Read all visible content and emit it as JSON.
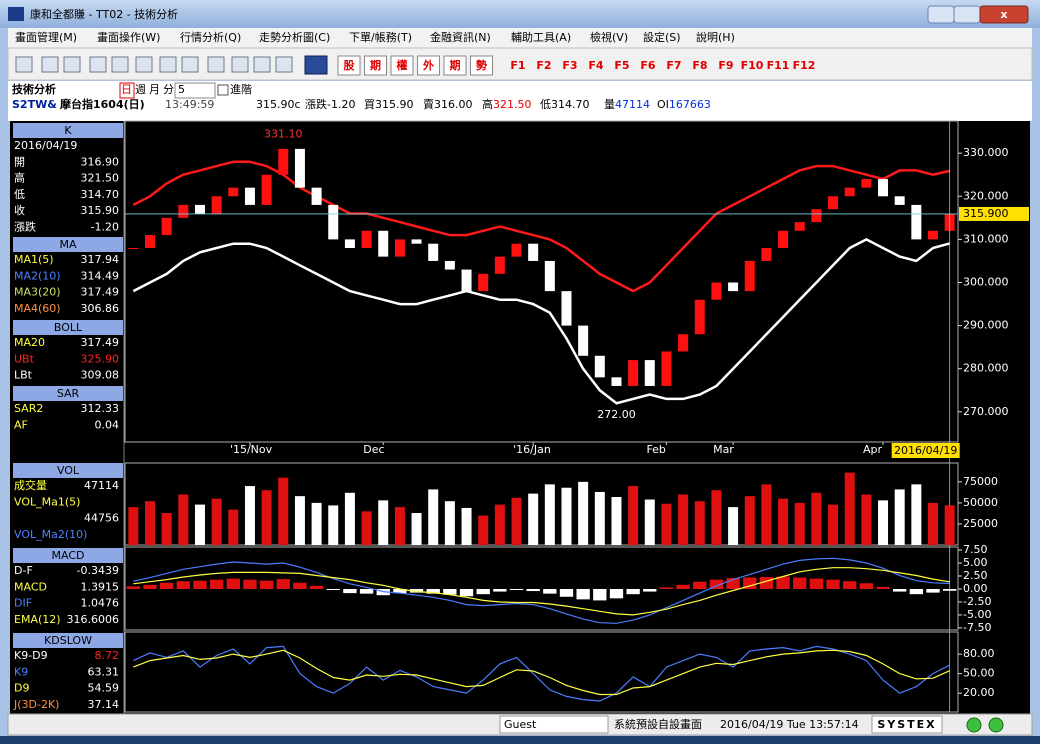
{
  "window": {
    "title": "康和全都賺 - TT02 - 技術分析"
  },
  "menu": [
    "畫面管理(M)",
    "畫面操作(W)",
    "行情分析(Q)",
    "走勢分析圖(C)",
    "下單/帳務(T)",
    "金融資訊(N)",
    "輔助工具(A)",
    "檢視(V)",
    "設定(S)",
    "說明(H)"
  ],
  "toolbar": {
    "buttons": [
      "股",
      "期",
      "權",
      "外",
      "期",
      "勢"
    ],
    "fkeys": [
      "F1",
      "F2",
      "F3",
      "F4",
      "F5",
      "F6",
      "F7",
      "F8",
      "F9",
      "F10",
      "F11",
      "F12"
    ]
  },
  "quote": {
    "title": "技術分析",
    "periods": [
      "日",
      "週",
      "月",
      "分"
    ],
    "minutes": "5",
    "advanced": "進階",
    "symbol": "S2TW&",
    "name": "摩台指1604(日)",
    "time": "13:49:59",
    "items": [
      {
        "label": "",
        "value": "315.90c"
      },
      {
        "label": "漲跌",
        "value": "-1.20"
      },
      {
        "label": "買",
        "value": "315.90"
      },
      {
        "label": "賣",
        "value": "316.00"
      },
      {
        "label": "高",
        "value": "321.50",
        "color": "#e00000"
      },
      {
        "label": "低",
        "value": "314.70"
      },
      {
        "label": "量",
        "value": "47114",
        "color": "#0030e0"
      },
      {
        "label": "OI",
        "value": "167663",
        "color": "#0030e0"
      }
    ]
  },
  "left_panel": [
    {
      "header": "K",
      "date": "2016/04/19",
      "rows": [
        {
          "label": "開",
          "value": "316.90"
        },
        {
          "label": "高",
          "value": "321.50"
        },
        {
          "label": "低",
          "value": "314.70"
        },
        {
          "label": "收",
          "value": "315.90"
        },
        {
          "label": "漲跌",
          "value": "-1.20"
        }
      ]
    },
    {
      "header": "MA",
      "rows": [
        {
          "label": "MA1(5)",
          "value": "317.94",
          "color": "#ffff40"
        },
        {
          "label": "MA2(10)",
          "value": "314.49",
          "color": "#5080ff"
        },
        {
          "label": "MA3(20)",
          "value": "317.49",
          "color": "#c8e060"
        },
        {
          "label": "MA4(60)",
          "value": "306.86",
          "color": "#ff9040"
        }
      ]
    },
    {
      "header": "BOLL",
      "rows": [
        {
          "label": "MA20",
          "value": "317.49",
          "color": "#ffff40"
        },
        {
          "label": "UBt",
          "value": "325.90",
          "color": "#ff2020",
          "value_color": "#ff2020"
        },
        {
          "label": "LBt",
          "value": "309.08"
        }
      ]
    },
    {
      "header": "SAR",
      "rows": [
        {
          "label": "SAR2",
          "value": "312.33",
          "color": "#ffff40"
        },
        {
          "label": "AF",
          "value": "0.04",
          "color": "#ffff40"
        }
      ]
    },
    {
      "header": "VOL",
      "rows": [
        {
          "label": "成交量",
          "value": "47114",
          "color": "#ffff40"
        },
        {
          "label": "VOL_Ma1(5)",
          "value": "44756",
          "wrap": true,
          "color": "#ffff40"
        },
        {
          "label": "VOL_Ma2(10)",
          "color": "#5080ff"
        }
      ]
    },
    {
      "header": "MACD",
      "rows": [
        {
          "label": "D-F",
          "value": "-0.3439"
        },
        {
          "label": "MACD",
          "value": "1.3915",
          "color": "#ffff40"
        },
        {
          "label": "DIF",
          "value": "1.0476",
          "color": "#5080ff"
        },
        {
          "label": "EMA(12)",
          "value": "316.6006",
          "color": "#ffff40"
        }
      ]
    },
    {
      "header": "KDSLOW",
      "rows": [
        {
          "label": "K9-D9",
          "value": "8.72",
          "value_color": "#ff2020"
        },
        {
          "label": "K9",
          "value": "63.31",
          "color": "#5080ff"
        },
        {
          "label": "D9",
          "value": "54.59",
          "color": "#ffff40"
        },
        {
          "label": "J(3D-2K)",
          "value": "37.14",
          "color": "#ff9040"
        }
      ]
    }
  ],
  "chart_data": [
    {
      "type": "candlestick",
      "color_up": "#ff1010",
      "color_down": "#ffffff",
      "values": [
        308,
        311,
        315,
        318,
        316,
        320,
        322,
        318,
        325,
        331,
        322,
        318,
        310,
        308,
        312,
        306,
        310,
        309,
        305,
        303,
        298,
        302,
        306,
        309,
        305,
        298,
        290,
        283,
        278,
        276,
        282,
        276,
        284,
        288,
        296,
        300,
        298,
        305,
        308,
        312,
        314,
        317,
        320,
        322,
        324,
        320,
        318,
        310,
        312,
        315.9
      ],
      "series": [
        {
          "color": "#ff1a1a",
          "values": [
            318,
            320,
            323,
            325,
            326,
            327,
            328,
            328,
            327,
            325,
            322,
            320,
            318,
            316,
            316,
            315,
            314,
            313,
            312,
            311,
            311,
            312,
            313,
            312,
            311,
            310,
            308,
            305,
            302,
            300,
            298,
            300,
            304,
            308,
            312,
            316,
            318,
            320,
            322,
            324,
            326,
            327,
            327,
            326,
            325,
            324,
            326,
            326,
            325,
            325.9
          ]
        },
        {
          "color": "#ffffff",
          "values": [
            298,
            300,
            302,
            305,
            307,
            308,
            309,
            309,
            308,
            306,
            304,
            302,
            300,
            298,
            297,
            296,
            295,
            295,
            296,
            297,
            298,
            297,
            296,
            296,
            295,
            293,
            287,
            280,
            275,
            272,
            273,
            274,
            273,
            273,
            274,
            276,
            280,
            284,
            288,
            292,
            296,
            300,
            304,
            308,
            310,
            308,
            306,
            305,
            308,
            309.08
          ]
        }
      ],
      "ylim": [
        263,
        337
      ],
      "yticks": [
        {
          "value": 270,
          "label": "270.000"
        },
        {
          "value": 280,
          "label": "280.000"
        },
        {
          "value": 290,
          "label": "290.000"
        },
        {
          "value": 300,
          "label": "300.000"
        },
        {
          "value": 310,
          "label": "310.000"
        },
        {
          "value": 320,
          "label": "320.000"
        },
        {
          "value": 330,
          "label": "330.000"
        }
      ],
      "xticks": [
        {
          "value": 7,
          "label": "'15/Nov"
        },
        {
          "value": 15,
          "label": "Dec"
        },
        {
          "value": 24,
          "label": "'16/Jan"
        },
        {
          "value": 32,
          "label": "Feb"
        },
        {
          "value": 36,
          "label": "Mar"
        },
        {
          "value": 45,
          "label": "Apr"
        }
      ],
      "annotations": [
        {
          "index": 9,
          "value": 331.1,
          "text": "331.10",
          "color": "#ff3030"
        },
        {
          "index": 29,
          "value": 272,
          "text": "272.00",
          "color": "#ffffff"
        }
      ],
      "last_label": {
        "value": 315.9,
        "label": "315.900"
      },
      "cursor_label": {
        "value": 49,
        "label": "2016/04/19"
      }
    },
    {
      "type": "bar",
      "color_up": "#e01010",
      "color_down": "#ffffff",
      "values": [
        45000,
        52000,
        38000,
        60000,
        48000,
        55000,
        42000,
        70000,
        65000,
        80000,
        58000,
        50000,
        47000,
        62000,
        40000,
        53000,
        45000,
        38000,
        66000,
        52000,
        44000,
        35000,
        48000,
        56000,
        61000,
        72000,
        68000,
        75000,
        63000,
        57000,
        70000,
        54000,
        49000,
        60000,
        52000,
        65000,
        45000,
        58000,
        72000,
        55000,
        50000,
        62000,
        48000,
        86000,
        60000,
        53000,
        66000,
        72000,
        50000,
        47114
      ],
      "ylim": [
        0,
        95000
      ],
      "yticks": [
        25000,
        50000,
        75000
      ]
    },
    {
      "type": "bar",
      "color_up": "#e01010",
      "color_down": "#ffffff",
      "values": [
        0.5,
        0.8,
        1.2,
        1.5,
        1.6,
        1.8,
        2.0,
        1.8,
        1.6,
        1.9,
        1.2,
        0.6,
        -0.2,
        -0.8,
        -0.9,
        -1.2,
        -0.8,
        -0.7,
        -0.9,
        -1.1,
        -1.4,
        -1.0,
        -0.5,
        -0.2,
        -0.4,
        -0.9,
        -1.5,
        -2.0,
        -2.2,
        -1.8,
        -1.0,
        -0.5,
        0.3,
        0.8,
        1.4,
        1.8,
        2.1,
        2.2,
        2.3,
        2.4,
        2.2,
        2.0,
        1.8,
        1.5,
        1.1,
        0.4,
        -0.5,
        -1.0,
        -0.7,
        -0.3439
      ],
      "series": [
        {
          "color": "#4a7cff",
          "values": [
            1.5,
            2.2,
            3.0,
            3.8,
            4.3,
            4.8,
            5.2,
            5.0,
            4.8,
            5.0,
            4.2,
            3.2,
            2.0,
            1.0,
            0.3,
            -0.5,
            -0.8,
            -1.2,
            -1.6,
            -2.2,
            -3.0,
            -3.2,
            -3.0,
            -2.8,
            -3.0,
            -3.8,
            -4.8,
            -5.8,
            -6.5,
            -6.6,
            -6.0,
            -5.0,
            -3.6,
            -2.2,
            -0.8,
            0.6,
            1.8,
            2.8,
            3.8,
            4.8,
            5.5,
            5.8,
            5.9,
            5.6,
            5.0,
            4.0,
            2.6,
            1.6,
            1.2,
            1.0476
          ]
        },
        {
          "color": "#ffff40",
          "values": [
            1.0,
            1.4,
            1.8,
            2.3,
            2.7,
            3.0,
            3.2,
            3.2,
            3.2,
            3.1,
            3.0,
            2.6,
            2.2,
            1.8,
            1.2,
            0.7,
            0.0,
            -0.5,
            -0.7,
            -1.1,
            -1.6,
            -2.2,
            -2.5,
            -2.6,
            -2.6,
            -2.9,
            -3.3,
            -3.8,
            -4.3,
            -4.8,
            -5.0,
            -4.5,
            -3.9,
            -3.0,
            -2.2,
            -1.2,
            -0.3,
            0.6,
            1.5,
            2.4,
            3.3,
            3.8,
            4.1,
            4.1,
            3.9,
            3.6,
            3.1,
            2.6,
            1.9,
            1.3915
          ]
        }
      ],
      "ylim": [
        -7.9,
        7.7
      ],
      "yticks": [
        {
          "value": -7.5,
          "label": "-7.50"
        },
        {
          "value": -5,
          "label": "-5.00"
        },
        {
          "value": -2.5,
          "label": "-2.50"
        },
        {
          "value": 0,
          "label": "0.00"
        },
        {
          "value": 2.5,
          "label": "2.50"
        },
        {
          "value": 5,
          "label": "5.00"
        },
        {
          "value": 7.5,
          "label": "7.50"
        }
      ]
    },
    {
      "type": "line",
      "series": [
        {
          "color": "#4a7cff",
          "values": [
            70,
            82,
            75,
            85,
            60,
            78,
            88,
            65,
            90,
            92,
            50,
            30,
            20,
            35,
            60,
            40,
            55,
            45,
            30,
            25,
            20,
            40,
            65,
            75,
            50,
            25,
            15,
            10,
            8,
            20,
            45,
            30,
            60,
            70,
            80,
            75,
            60,
            85,
            88,
            90,
            85,
            92,
            88,
            80,
            70,
            40,
            20,
            30,
            50,
            63.31
          ]
        },
        {
          "color": "#ffff40",
          "values": [
            60,
            70,
            74,
            78,
            72,
            74,
            80,
            75,
            80,
            86,
            74,
            58,
            44,
            40,
            48,
            46,
            49,
            48,
            42,
            36,
            30,
            32,
            44,
            56,
            54,
            44,
            32,
            24,
            18,
            18,
            28,
            30,
            40,
            50,
            60,
            66,
            64,
            70,
            76,
            80,
            82,
            85,
            86,
            84,
            78,
            65,
            50,
            42,
            43,
            54.59
          ]
        }
      ],
      "ylim": [
        -9,
        111
      ],
      "yticks": [
        {
          "value": 20,
          "label": "20.00"
        },
        {
          "value": 50,
          "label": "50.00"
        },
        {
          "value": 80,
          "label": "80.00"
        }
      ]
    }
  ],
  "status": {
    "user": "Guest",
    "layout": "系統預設自設畫面",
    "datetime": "2016/04/19 Tue 13:57:14",
    "brand": "SYSTEX"
  }
}
